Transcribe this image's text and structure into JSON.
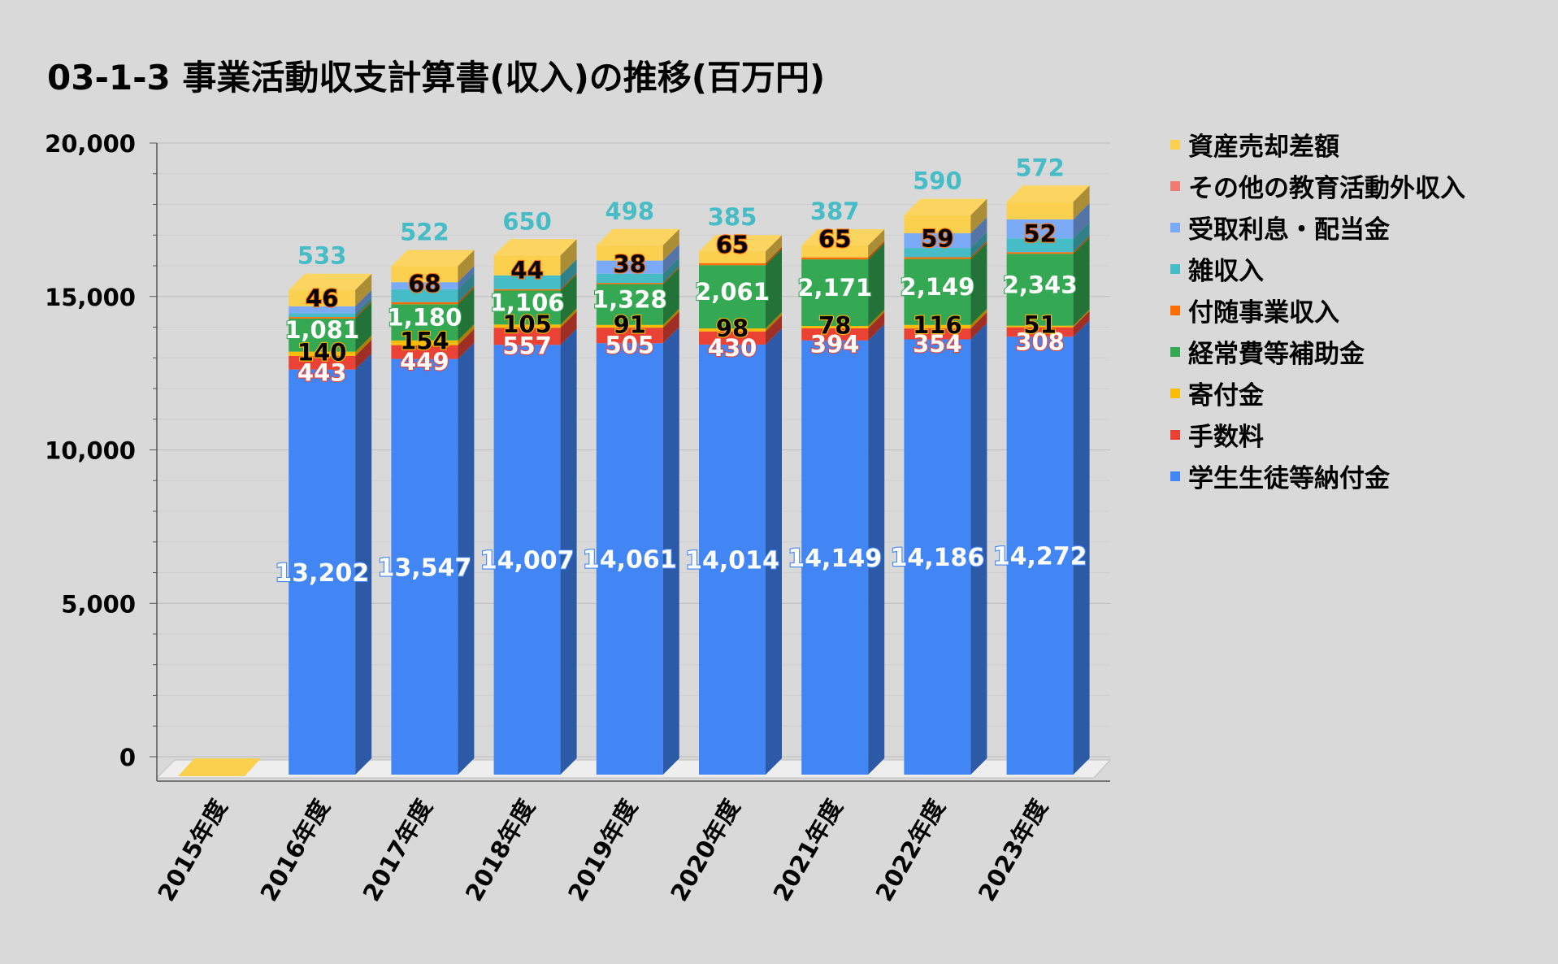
{
  "chart_data": {
    "type": "bar",
    "stacked": true,
    "title": "03-1-3 事業活動収支計算書(収入)の推移(百万円)",
    "categories": [
      "2015年度",
      "2016年度",
      "2017年度",
      "2018年度",
      "2019年度",
      "2020年度",
      "2021年度",
      "2022年度",
      "2023年度"
    ],
    "ylim": [
      0,
      20000
    ],
    "yticks": [
      "0",
      "5,000",
      "10,000",
      "15,000",
      "20,000"
    ],
    "grid": true,
    "legend_position": "right",
    "series": [
      {
        "name": "学生生徒等納付金",
        "color": "#4285f4",
        "label_color": "#ffffff",
        "label_outline": "#4285f4",
        "values": [
          0,
          13202,
          13547,
          14007,
          14061,
          14014,
          14149,
          14186,
          14272
        ],
        "labels": [
          "",
          "13,202",
          "13,547",
          "14,007",
          "14,061",
          "14,014",
          "14,149",
          "14,186",
          "14,272"
        ]
      },
      {
        "name": "手数料",
        "color": "#ea4335",
        "label_color": "#ffffff",
        "label_outline": "#ea4335",
        "values": [
          0,
          443,
          449,
          557,
          505,
          430,
          394,
          354,
          308
        ],
        "labels": [
          "",
          "443",
          "449",
          "557",
          "505",
          "430",
          "394",
          "354",
          "308"
        ]
      },
      {
        "name": "寄付金",
        "color": "#fbbc04",
        "label_color": "#000000",
        "label_outline": "#fbbc04",
        "values": [
          0,
          140,
          154,
          105,
          91,
          98,
          78,
          116,
          51
        ],
        "labels": [
          "",
          "140",
          "154",
          "105",
          "91",
          "98",
          "78",
          "116",
          "51"
        ]
      },
      {
        "name": "経常費等補助金",
        "color": "#34a853",
        "label_color": "#ffffff",
        "label_outline": "#34a853",
        "values": [
          0,
          1081,
          1180,
          1106,
          1328,
          2061,
          2171,
          2149,
          2343
        ],
        "labels": [
          "",
          "1,081",
          "1,180",
          "1,106",
          "1,328",
          "2,061",
          "2,171",
          "2,149",
          "2,343"
        ]
      },
      {
        "name": "付随事業収入",
        "color": "#ff6d01",
        "label_color": "#000000",
        "label_outline": "#ff6d01",
        "values": [
          0,
          46,
          68,
          44,
          38,
          65,
          65,
          59,
          52
        ],
        "labels": [
          "",
          "46",
          "68",
          "44",
          "38",
          "65",
          "65",
          "59",
          "52"
        ]
      },
      {
        "name": "雑収入",
        "color": "#46bdc6",
        "label_color": "#46bdc6",
        "label_outline": "none",
        "values": [
          0,
          120,
          420,
          450,
          300,
          0,
          0,
          300,
          450
        ],
        "labels": [
          "",
          "",
          "",
          "",
          "",
          "",
          "",
          "",
          ""
        ]
      },
      {
        "name": "受取利息・配当金",
        "color": "#7baaf7",
        "label_color": "#7baaf7",
        "label_outline": "none",
        "values": [
          0,
          230,
          230,
          0,
          430,
          0,
          0,
          480,
          620
        ],
        "labels": [
          "",
          "",
          "",
          "",
          "",
          "",
          "",
          "",
          ""
        ]
      },
      {
        "name": "その他の教育活動外収入",
        "color": "#f07b72",
        "label_color": "#f07b72",
        "label_outline": "none",
        "values": [
          0,
          0,
          0,
          0,
          0,
          0,
          0,
          0,
          0
        ],
        "labels": [
          "",
          "",
          "",
          "",
          "",
          "",
          "",
          "",
          ""
        ]
      },
      {
        "name": "資産売却差額",
        "color": "#fcd04f",
        "label_color": "#46bdc6",
        "label_outline": "none",
        "values": [
          0,
          533,
          522,
          650,
          498,
          385,
          387,
          590,
          572
        ],
        "labels": [
          "",
          "533",
          "522",
          "650",
          "498",
          "385",
          "387",
          "590",
          "572"
        ]
      }
    ]
  }
}
